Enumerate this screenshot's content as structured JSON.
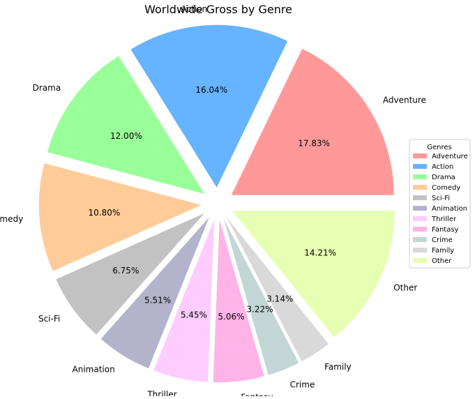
{
  "chart_data": {
    "type": "pie",
    "title": "Worldwide Gross by Genre",
    "legend": {
      "title": "Genres",
      "placement": "center-right"
    },
    "autopct_format": "{v}%",
    "slices": [
      {
        "label": "Adventure",
        "value": 17.83,
        "color": "#ff9999"
      },
      {
        "label": "Action",
        "value": 16.04,
        "color": "#66b3ff"
      },
      {
        "label": "Drama",
        "value": 12.0,
        "color": "#99ff99"
      },
      {
        "label": "Comedy",
        "value": 10.8,
        "color": "#ffcc99"
      },
      {
        "label": "Sci-Fi",
        "value": 6.75,
        "color": "#c2c2c2"
      },
      {
        "label": "Animation",
        "value": 5.51,
        "color": "#b3b3cc"
      },
      {
        "label": "Thriller",
        "value": 5.45,
        "color": "#ffccff"
      },
      {
        "label": "Fantasy",
        "value": 5.06,
        "color": "#ffb3e6"
      },
      {
        "label": "Crime",
        "value": 3.22,
        "color": "#c2d6d6"
      },
      {
        "label": "Family",
        "value": 3.14,
        "color": "#d9d9d9"
      },
      {
        "label": "Other",
        "value": 14.21,
        "color": "#e6ffb3"
      }
    ]
  }
}
